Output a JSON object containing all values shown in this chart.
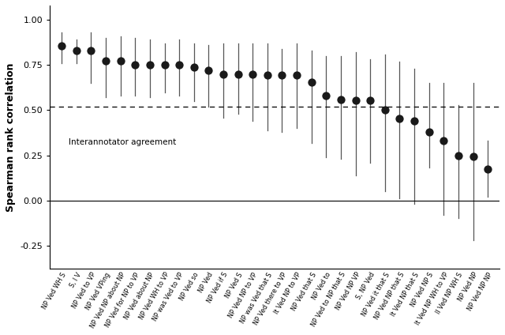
{
  "categories": [
    "NP Ved WH S",
    "S, I V",
    "NP Ved to VP",
    "NP Ved VPing",
    "NP Ved NP about NP",
    "NP Ved for NP to VP",
    "NP Ved about NP",
    "NP Ved WH to VP",
    "NP was Ved to VP",
    "NP Ved so",
    "NP Ved",
    "NP Ved if S",
    "NP Ved S",
    "NP Ved NP to VP",
    "NP was Ved that S",
    "NP Ved there to VP",
    "It Ved NP to VP",
    "NP Ved that S",
    "NP Ved to",
    "NP Ved to NP that S",
    "NP Ved NP VP",
    "S, NP Ved",
    "NP Ved it that S",
    "NP Ved NP that S",
    "It Ved NP that S",
    "NP Ved NP S",
    "It Ved NP WH to VP",
    "II Ved NP WH S",
    "NP Ved NP",
    "NP Ved NP NP"
  ],
  "values": [
    0.855,
    0.83,
    0.83,
    0.775,
    0.775,
    0.75,
    0.75,
    0.75,
    0.75,
    0.74,
    0.72,
    0.7,
    0.7,
    0.7,
    0.695,
    0.695,
    0.695,
    0.655,
    0.58,
    0.56,
    0.555,
    0.555,
    0.5,
    0.455,
    0.44,
    0.38,
    0.33,
    0.25,
    0.245,
    0.175
  ],
  "ci_lower": [
    0.76,
    0.76,
    0.65,
    0.57,
    0.58,
    0.58,
    0.57,
    0.6,
    0.58,
    0.55,
    0.52,
    0.46,
    0.48,
    0.44,
    0.39,
    0.38,
    0.4,
    0.32,
    0.24,
    0.23,
    0.14,
    0.21,
    0.05,
    0.01,
    -0.02,
    0.18,
    -0.08,
    -0.1,
    -0.22,
    0.02
  ],
  "ci_upper": [
    0.93,
    0.89,
    0.93,
    0.9,
    0.91,
    0.9,
    0.89,
    0.87,
    0.89,
    0.87,
    0.86,
    0.87,
    0.87,
    0.87,
    0.87,
    0.84,
    0.87,
    0.83,
    0.8,
    0.8,
    0.82,
    0.78,
    0.81,
    0.77,
    0.73,
    0.65,
    0.65,
    0.53,
    0.65,
    0.33
  ],
  "interannotator_line": 0.52,
  "interannotator_label": "Interannotator agreement",
  "ylabel": "Spearman rank correlation",
  "ylim": [
    -0.38,
    1.08
  ],
  "yticks": [
    -0.25,
    0.0,
    0.25,
    0.5,
    0.75,
    1.0
  ],
  "dot_color": "#1a1a1a",
  "dot_size": 55,
  "line_color": "#555555",
  "background_color": "#ffffff"
}
